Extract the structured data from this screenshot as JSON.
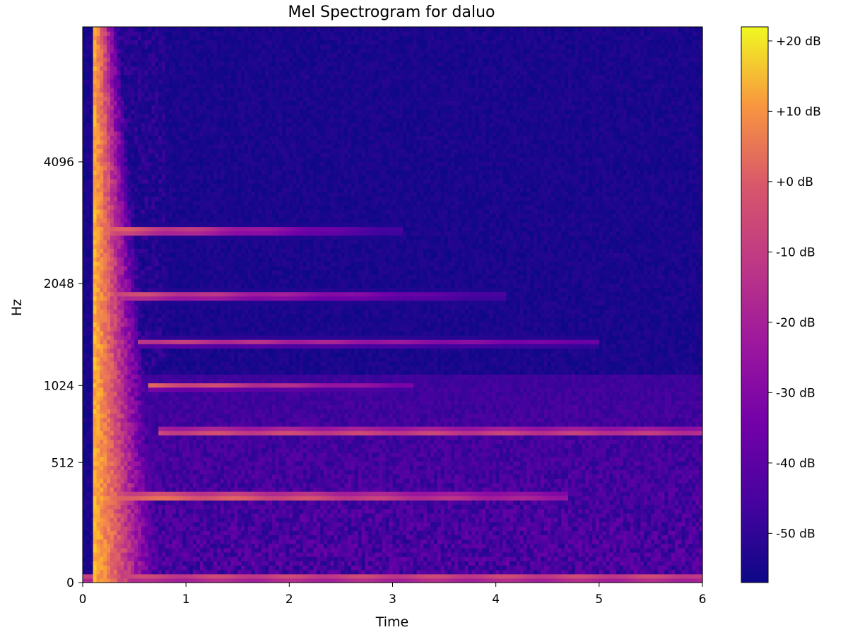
{
  "chart_data": {
    "type": "heatmap",
    "title": "Mel Spectrogram for daluo",
    "xlabel": "Time",
    "ylabel": "Hz",
    "x_ticks": [
      "0",
      "1",
      "2",
      "3",
      "4",
      "5",
      "6"
    ],
    "xlim": [
      0,
      6
    ],
    "y_scale": "mel",
    "y_ticks": [
      "0",
      "512",
      "1024",
      "2048",
      "4096"
    ],
    "ylim": [
      0,
      8192
    ],
    "colormap": "plasma",
    "colorbar": {
      "range_db": [
        -57,
        22
      ],
      "ticks": [
        "+20 dB",
        "+10 dB",
        "+0 dB",
        "-10 dB",
        "-20 dB",
        "-30 dB",
        "-40 dB",
        "-50 dB"
      ],
      "tick_values": [
        20,
        10,
        0,
        -10,
        -20,
        -30,
        -40,
        -50
      ]
    },
    "background_level_db": -55,
    "features": [
      {
        "name": "onset broadband burst",
        "t_start": 0.1,
        "t_end": 0.6,
        "freq_hz": [
          0,
          8192
        ],
        "peak_db": 10
      },
      {
        "name": "low band",
        "t_start": 0.15,
        "t_end": 4.5,
        "freq_hz": 340,
        "peak_db": 14,
        "end_db": -20
      },
      {
        "name": "sustained tone",
        "t_start": 0.8,
        "t_end": 6.0,
        "freq_hz": 700,
        "peak_db": -5,
        "end_db": -12
      },
      {
        "name": "partial 1024",
        "t_start": 0.7,
        "t_end": 3.0,
        "freq_hz": 1020,
        "peak_db": -8,
        "end_db": -35
      },
      {
        "name": "partial 1400",
        "t_start": 0.6,
        "t_end": 4.8,
        "freq_hz": 1400,
        "peak_db": -18,
        "end_db": -40
      },
      {
        "name": "partial 1900",
        "t_start": 0.2,
        "t_end": 3.9,
        "freq_hz": 1900,
        "peak_db": 0,
        "end_db": -45
      },
      {
        "name": "partial 2800",
        "t_start": 0.2,
        "t_end": 2.9,
        "freq_hz": 2800,
        "peak_db": 8,
        "end_db": -45
      },
      {
        "name": "floor band",
        "t_start": 0.0,
        "t_end": 6.0,
        "freq_hz": 15,
        "peak_db": -5
      }
    ]
  }
}
